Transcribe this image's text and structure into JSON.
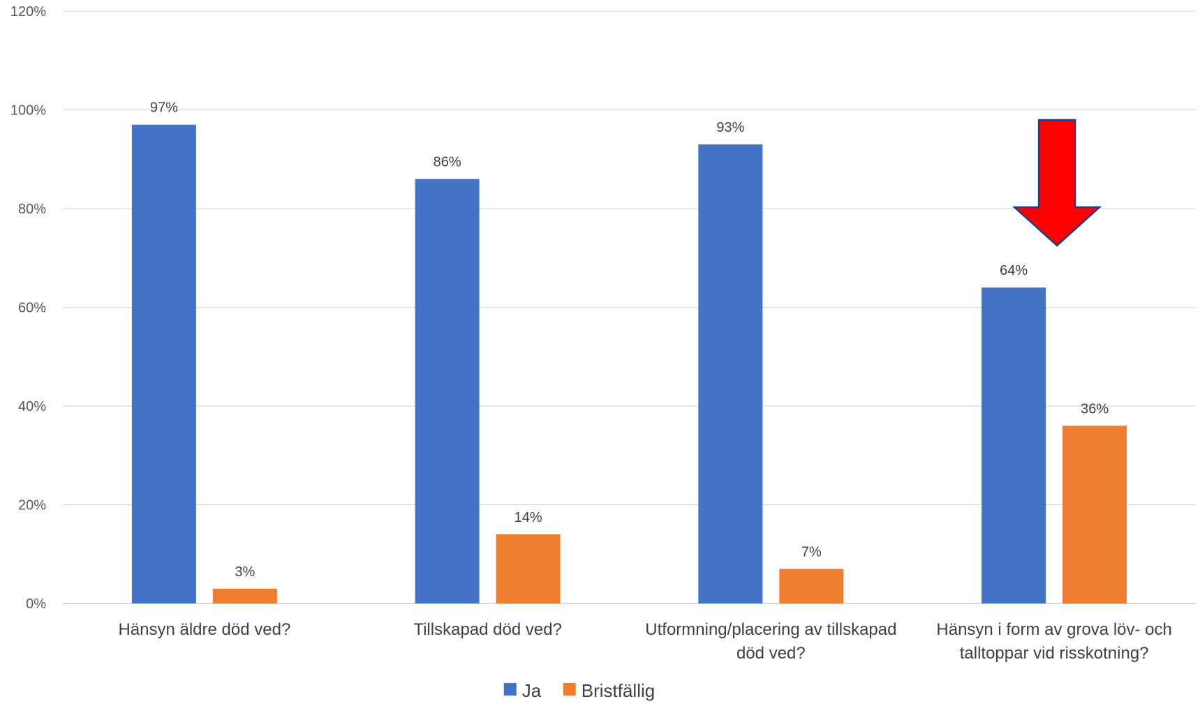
{
  "chart_data": {
    "type": "bar",
    "categories": [
      [
        "Hänsyn äldre död ved?"
      ],
      [
        "Tillskapad död ved?"
      ],
      [
        "Utformning/placering av tillskapad",
        "död ved?"
      ],
      [
        "Hänsyn i form av grova löv- och",
        "talltoppar vid risskotning?"
      ]
    ],
    "series": [
      {
        "name": "Ja",
        "color": "#4472C4",
        "values": [
          97,
          86,
          93,
          64
        ],
        "labels": [
          "97%",
          "86%",
          "93%",
          "64%"
        ]
      },
      {
        "name": "Bristfällig",
        "color": "#ED7D31",
        "values": [
          3,
          14,
          7,
          36
        ],
        "labels": [
          "3%",
          "14%",
          "7%",
          "36%"
        ]
      }
    ],
    "ylim": [
      0,
      120
    ],
    "yticks": [
      "0%",
      "20%",
      "40%",
      "60%",
      "80%",
      "100%",
      "120%"
    ],
    "grid": true,
    "legend": "bottom-center",
    "annotation": {
      "type": "down-arrow",
      "color": "#FF0000",
      "outline": "#1F3C88",
      "target_category": 3
    }
  }
}
